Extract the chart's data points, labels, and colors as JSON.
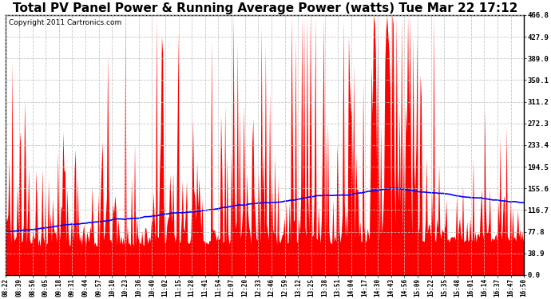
{
  "title": "Total PV Panel Power & Running Average Power (watts) Tue Mar 22 17:12",
  "copyright": "Copyright 2011 Cartronics.com",
  "ylim": [
    0.0,
    466.8
  ],
  "yticks": [
    0.0,
    38.9,
    77.8,
    116.7,
    155.6,
    194.5,
    233.4,
    272.3,
    311.2,
    350.1,
    389.0,
    427.9,
    466.8
  ],
  "xtick_labels": [
    "08:22",
    "08:39",
    "08:56",
    "09:05",
    "09:18",
    "09:31",
    "09:44",
    "09:57",
    "10:10",
    "10:23",
    "10:36",
    "10:49",
    "11:02",
    "11:15",
    "11:28",
    "11:41",
    "11:54",
    "12:07",
    "12:20",
    "12:33",
    "12:46",
    "12:59",
    "13:12",
    "13:25",
    "13:38",
    "13:51",
    "14:04",
    "14:17",
    "14:30",
    "14:43",
    "14:56",
    "15:09",
    "15:22",
    "15:35",
    "15:48",
    "16:01",
    "16:14",
    "16:37",
    "16:47",
    "16:50"
  ],
  "bg_color": "#ffffff",
  "fill_color": "#ff0000",
  "line_color": "#0000ff",
  "grid_color": "#c0c0c0",
  "title_fontsize": 11,
  "copyright_fontsize": 6.5
}
